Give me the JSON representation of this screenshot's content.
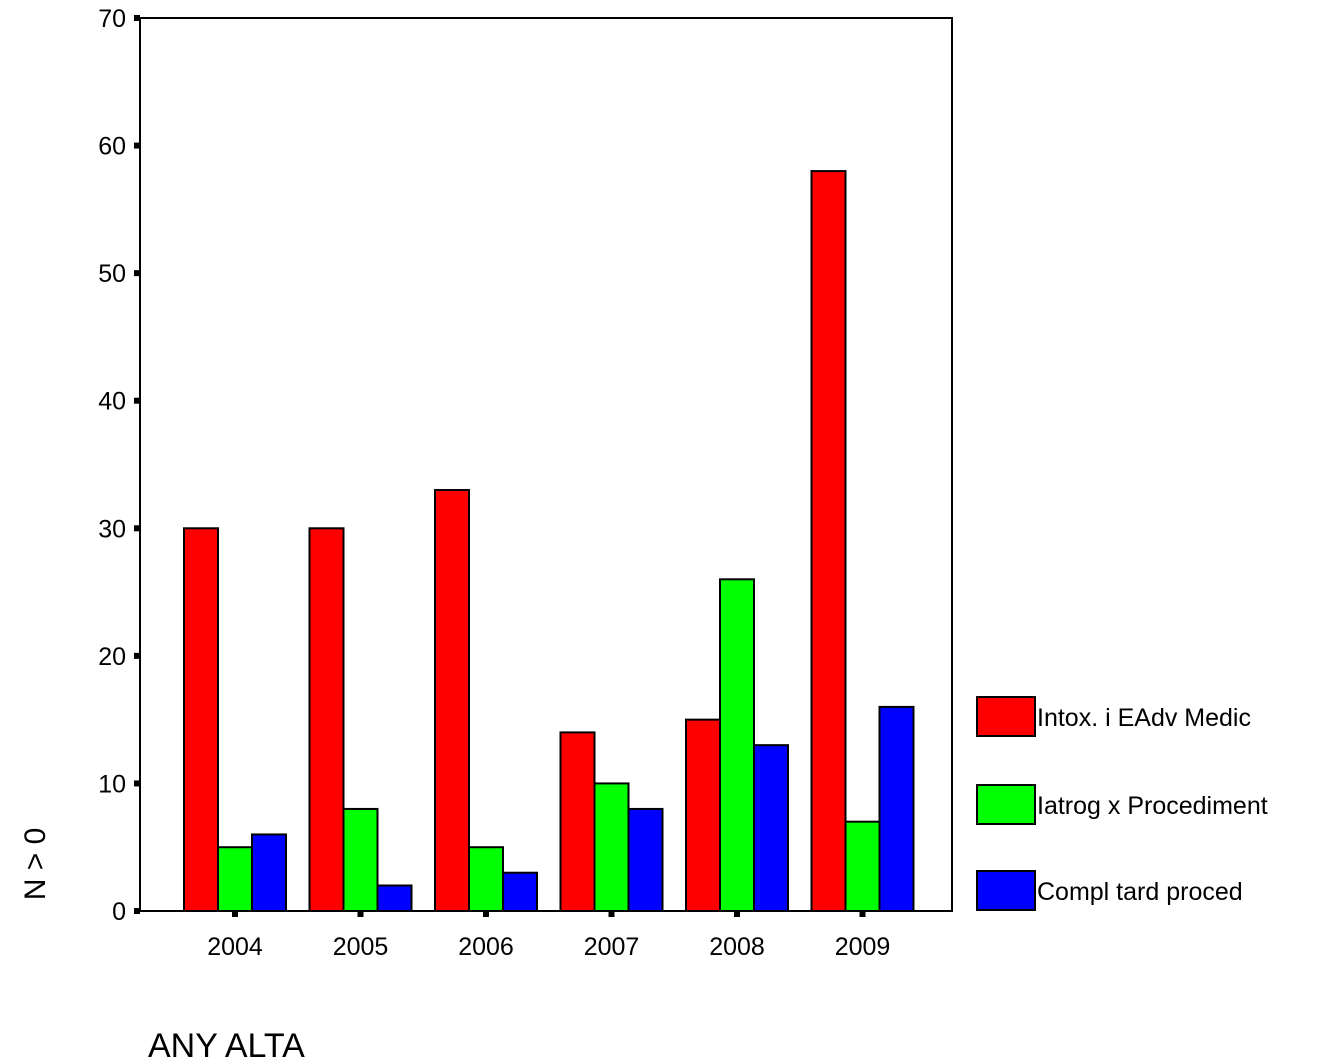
{
  "chart_data": {
    "type": "bar",
    "title": "",
    "xlabel": "ANY ALTA",
    "ylabel": "N > 0",
    "ylim": [
      0,
      70
    ],
    "yticks": [
      0,
      10,
      20,
      30,
      40,
      50,
      60,
      70
    ],
    "categories": [
      "2004",
      "2005",
      "2006",
      "2007",
      "2008",
      "2009"
    ],
    "series": [
      {
        "name": "Intox. i EAdv Medic",
        "color": "#ff0000",
        "values": [
          30,
          30,
          33,
          14,
          15,
          58
        ]
      },
      {
        "name": "Iatrog x Procediment",
        "color": "#00ff00",
        "values": [
          5,
          8,
          5,
          10,
          26,
          7
        ]
      },
      {
        "name": "Compl tard proced",
        "color": "#0000ff",
        "values": [
          6,
          2,
          3,
          8,
          13,
          16
        ]
      }
    ],
    "grid": false,
    "legend_position": "right"
  }
}
